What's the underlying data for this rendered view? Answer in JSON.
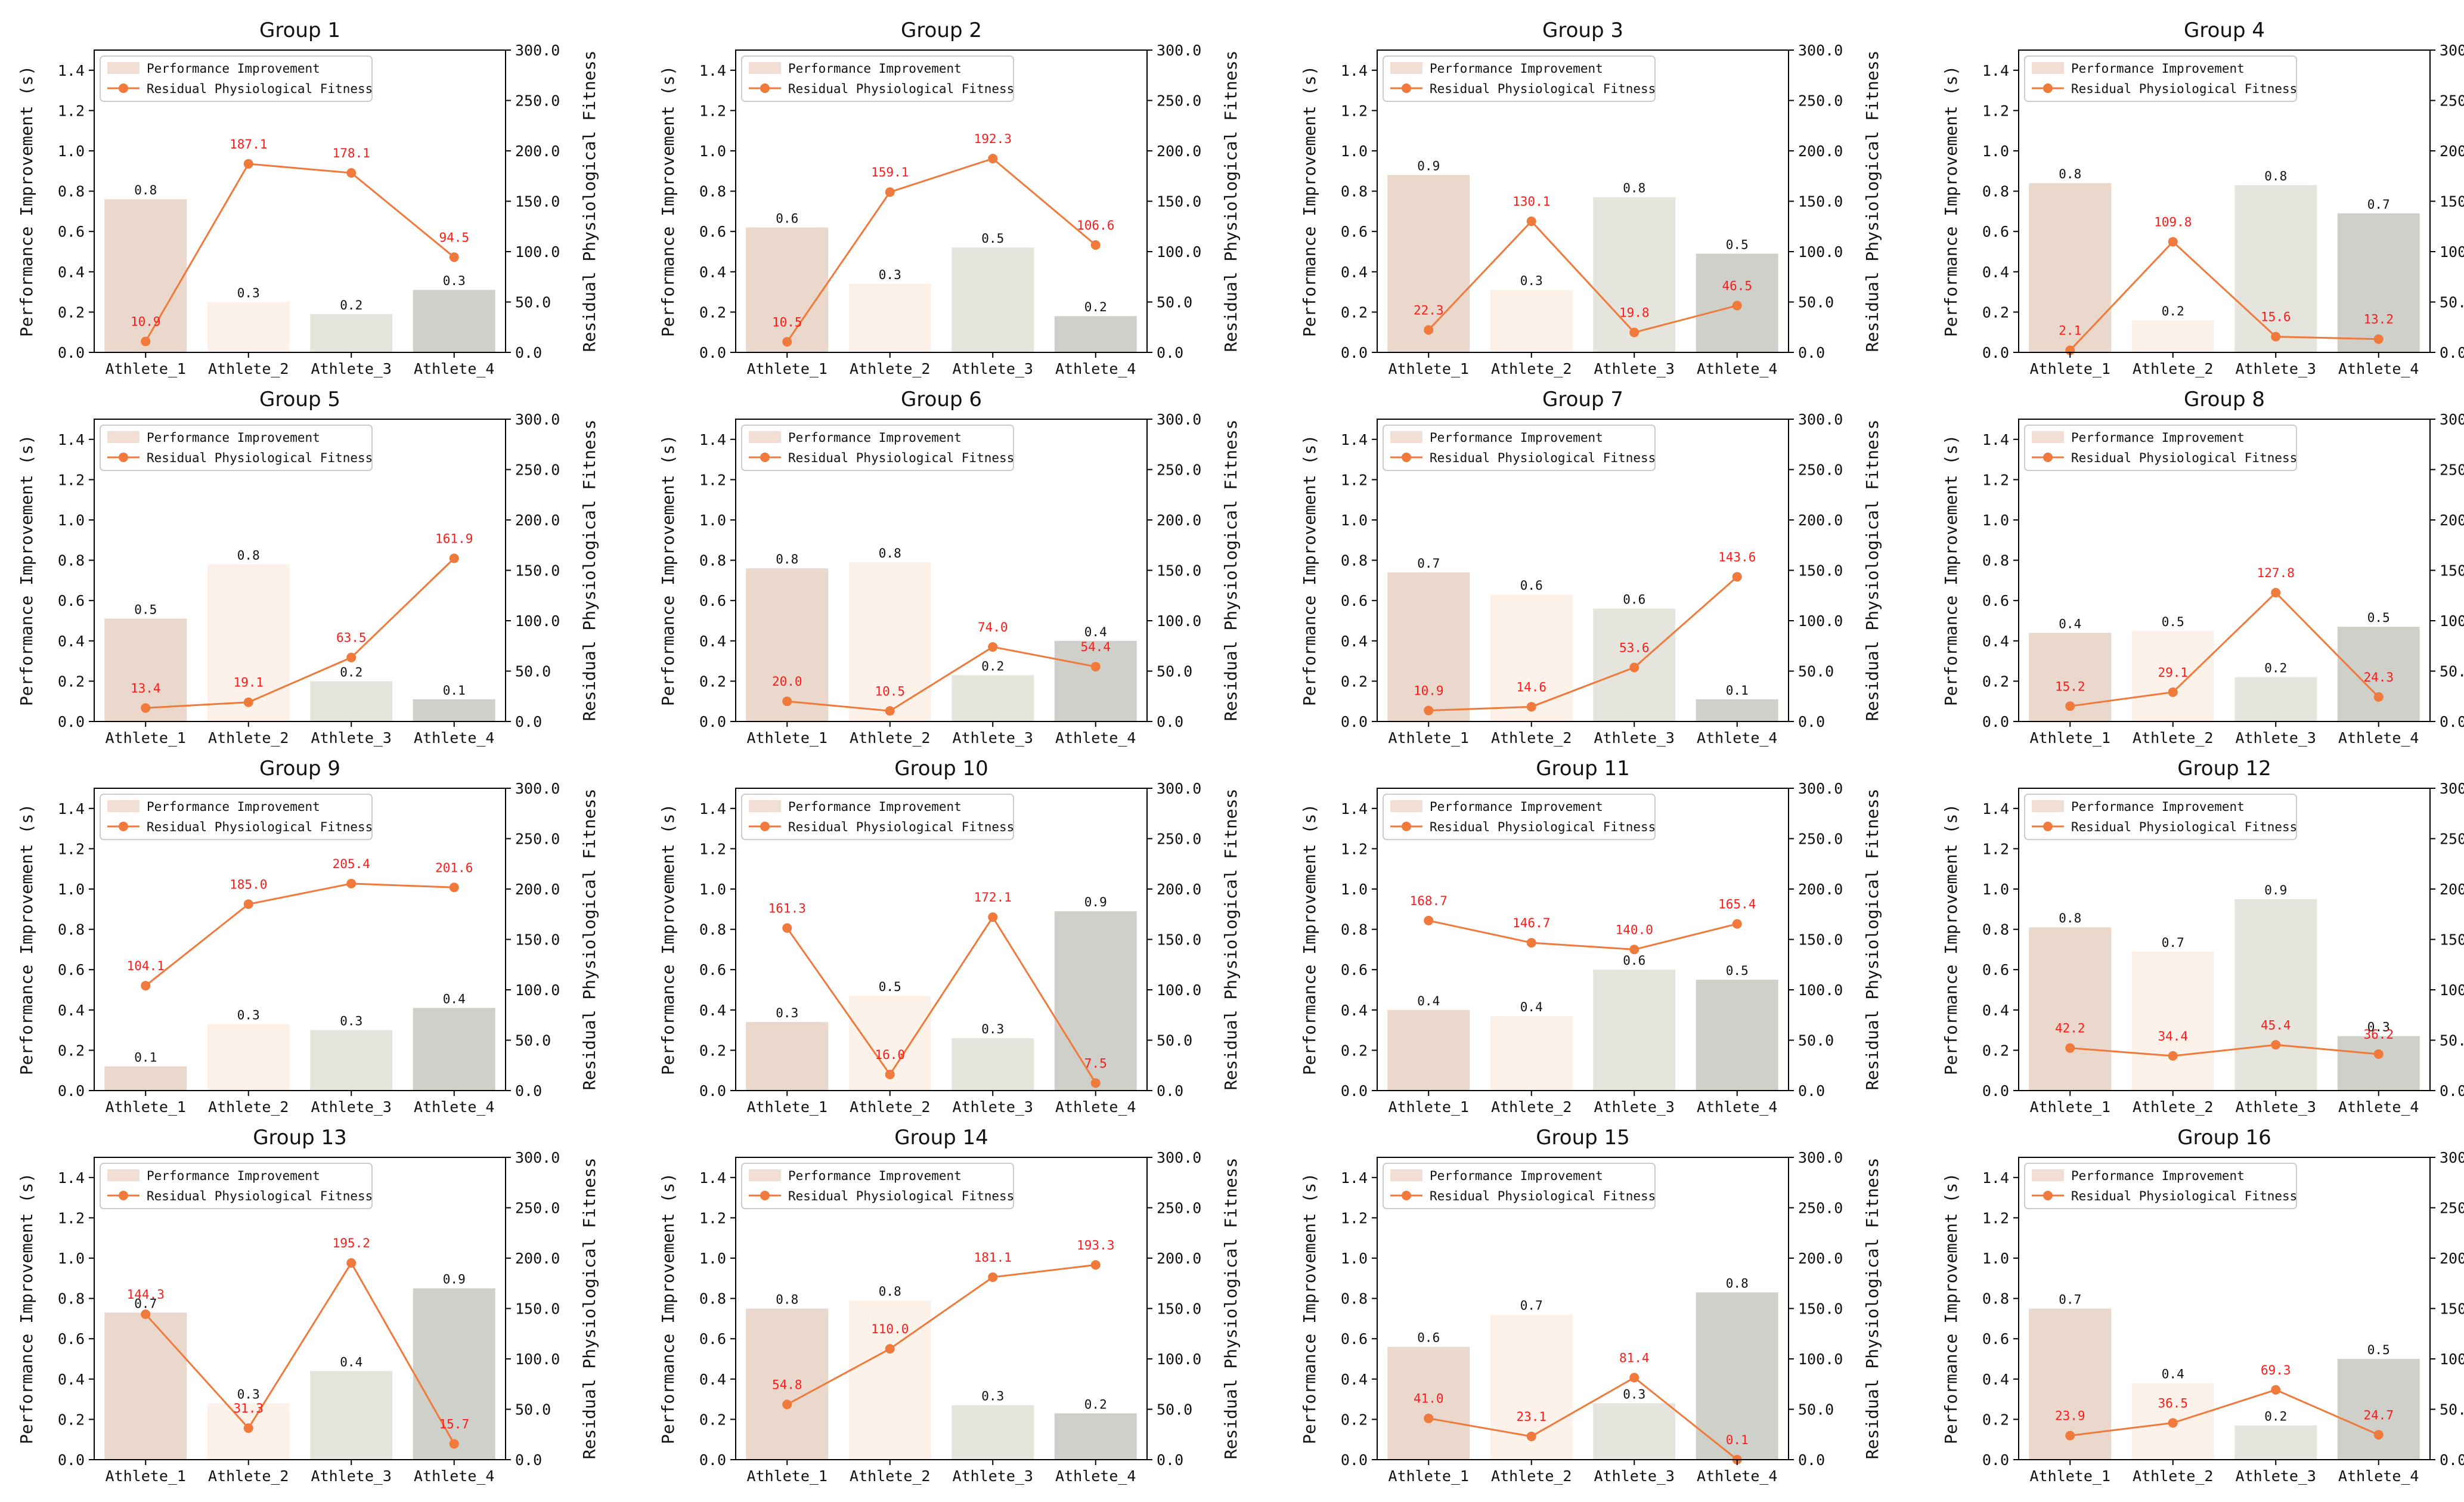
{
  "chart_data": [
    {
      "type": "bar+line",
      "title": "Group 1",
      "categories": [
        "Athlete_1",
        "Athlete_2",
        "Athlete_3",
        "Athlete_4"
      ],
      "series": [
        {
          "name": "Performance Improvement",
          "axis": "left",
          "values": [
            0.76,
            0.25,
            0.19,
            0.31
          ],
          "labels": [
            "0.8",
            "0.3",
            "0.2",
            "0.3"
          ]
        },
        {
          "name": "Residual Physiological Fitness",
          "axis": "right",
          "values": [
            10.9,
            187.1,
            178.1,
            94.5
          ],
          "labels": [
            "10.9",
            "187.1",
            "178.1",
            "94.5"
          ]
        }
      ]
    },
    {
      "type": "bar+line",
      "title": "Group 2",
      "categories": [
        "Athlete_1",
        "Athlete_2",
        "Athlete_3",
        "Athlete_4"
      ],
      "series": [
        {
          "name": "Performance Improvement",
          "axis": "left",
          "values": [
            0.62,
            0.34,
            0.52,
            0.18
          ],
          "labels": [
            "0.6",
            "0.3",
            "0.5",
            "0.2"
          ]
        },
        {
          "name": "Residual Physiological Fitness",
          "axis": "right",
          "values": [
            10.5,
            159.1,
            192.3,
            106.6
          ],
          "labels": [
            "10.5",
            "159.1",
            "192.3",
            "106.6"
          ]
        }
      ]
    },
    {
      "type": "bar+line",
      "title": "Group 3",
      "categories": [
        "Athlete_1",
        "Athlete_2",
        "Athlete_3",
        "Athlete_4"
      ],
      "series": [
        {
          "name": "Performance Improvement",
          "axis": "left",
          "values": [
            0.88,
            0.31,
            0.77,
            0.49
          ],
          "labels": [
            "0.9",
            "0.3",
            "0.8",
            "0.5"
          ]
        },
        {
          "name": "Residual Physiological Fitness",
          "axis": "right",
          "values": [
            22.3,
            130.1,
            19.8,
            46.5
          ],
          "labels": [
            "22.3",
            "130.1",
            "19.8",
            "46.5"
          ]
        }
      ]
    },
    {
      "type": "bar+line",
      "title": "Group 4",
      "categories": [
        "Athlete_1",
        "Athlete_2",
        "Athlete_3",
        "Athlete_4"
      ],
      "series": [
        {
          "name": "Performance Improvement",
          "axis": "left",
          "values": [
            0.84,
            0.16,
            0.83,
            0.69
          ],
          "labels": [
            "0.8",
            "0.2",
            "0.8",
            "0.7"
          ]
        },
        {
          "name": "Residual Physiological Fitness",
          "axis": "right",
          "values": [
            2.1,
            109.8,
            15.6,
            13.2
          ],
          "labels": [
            "2.1",
            "109.8",
            "15.6",
            "13.2"
          ]
        }
      ]
    },
    {
      "type": "bar+line",
      "title": "Group 5",
      "categories": [
        "Athlete_1",
        "Athlete_2",
        "Athlete_3",
        "Athlete_4"
      ],
      "series": [
        {
          "name": "Performance Improvement",
          "axis": "left",
          "values": [
            0.51,
            0.78,
            0.2,
            0.11
          ],
          "labels": [
            "0.5",
            "0.8",
            "0.2",
            "0.1"
          ]
        },
        {
          "name": "Residual Physiological Fitness",
          "axis": "right",
          "values": [
            13.4,
            19.1,
            63.5,
            161.9
          ],
          "labels": [
            "13.4",
            "19.1",
            "63.5",
            "161.9"
          ]
        }
      ]
    },
    {
      "type": "bar+line",
      "title": "Group 6",
      "categories": [
        "Athlete_1",
        "Athlete_2",
        "Athlete_3",
        "Athlete_4"
      ],
      "series": [
        {
          "name": "Performance Improvement",
          "axis": "left",
          "values": [
            0.76,
            0.79,
            0.23,
            0.4
          ],
          "labels": [
            "0.8",
            "0.8",
            "0.2",
            "0.4"
          ]
        },
        {
          "name": "Residual Physiological Fitness",
          "axis": "right",
          "values": [
            20.0,
            10.5,
            74.0,
            54.4
          ],
          "labels": [
            "20.0",
            "10.5",
            "74.0",
            "54.4"
          ]
        }
      ]
    },
    {
      "type": "bar+line",
      "title": "Group 7",
      "categories": [
        "Athlete_1",
        "Athlete_2",
        "Athlete_3",
        "Athlete_4"
      ],
      "series": [
        {
          "name": "Performance Improvement",
          "axis": "left",
          "values": [
            0.74,
            0.63,
            0.56,
            0.11
          ],
          "labels": [
            "0.7",
            "0.6",
            "0.6",
            "0.1"
          ]
        },
        {
          "name": "Residual Physiological Fitness",
          "axis": "right",
          "values": [
            10.9,
            14.6,
            53.6,
            143.6
          ],
          "labels": [
            "10.9",
            "14.6",
            "53.6",
            "143.6"
          ]
        }
      ]
    },
    {
      "type": "bar+line",
      "title": "Group 8",
      "categories": [
        "Athlete_1",
        "Athlete_2",
        "Athlete_3",
        "Athlete_4"
      ],
      "series": [
        {
          "name": "Performance Improvement",
          "axis": "left",
          "values": [
            0.44,
            0.45,
            0.22,
            0.47
          ],
          "labels": [
            "0.4",
            "0.5",
            "0.2",
            "0.5"
          ]
        },
        {
          "name": "Residual Physiological Fitness",
          "axis": "right",
          "values": [
            15.2,
            29.1,
            127.8,
            24.3
          ],
          "labels": [
            "15.2",
            "29.1",
            "127.8",
            "24.3"
          ]
        }
      ]
    },
    {
      "type": "bar+line",
      "title": "Group 9",
      "categories": [
        "Athlete_1",
        "Athlete_2",
        "Athlete_3",
        "Athlete_4"
      ],
      "series": [
        {
          "name": "Performance Improvement",
          "axis": "left",
          "values": [
            0.12,
            0.33,
            0.3,
            0.41
          ],
          "labels": [
            "0.1",
            "0.3",
            "0.3",
            "0.4"
          ]
        },
        {
          "name": "Residual Physiological Fitness",
          "axis": "right",
          "values": [
            104.1,
            185.0,
            205.4,
            201.6
          ],
          "labels": [
            "104.1",
            "185.0",
            "205.4",
            "201.6"
          ]
        }
      ]
    },
    {
      "type": "bar+line",
      "title": "Group 10",
      "categories": [
        "Athlete_1",
        "Athlete_2",
        "Athlete_3",
        "Athlete_4"
      ],
      "series": [
        {
          "name": "Performance Improvement",
          "axis": "left",
          "values": [
            0.34,
            0.47,
            0.26,
            0.89
          ],
          "labels": [
            "0.3",
            "0.5",
            "0.3",
            "0.9"
          ]
        },
        {
          "name": "Residual Physiological Fitness",
          "axis": "right",
          "values": [
            161.3,
            16.0,
            172.1,
            7.5
          ],
          "labels": [
            "161.3",
            "16.0",
            "172.1",
            "7.5"
          ]
        }
      ]
    },
    {
      "type": "bar+line",
      "title": "Group 11",
      "categories": [
        "Athlete_1",
        "Athlete_2",
        "Athlete_3",
        "Athlete_4"
      ],
      "series": [
        {
          "name": "Performance Improvement",
          "axis": "left",
          "values": [
            0.4,
            0.37,
            0.6,
            0.55
          ],
          "labels": [
            "0.4",
            "0.4",
            "0.6",
            "0.5"
          ]
        },
        {
          "name": "Residual Physiological Fitness",
          "axis": "right",
          "values": [
            168.7,
            146.7,
            140.0,
            165.4
          ],
          "labels": [
            "168.7",
            "146.7",
            "140.0",
            "165.4"
          ]
        }
      ]
    },
    {
      "type": "bar+line",
      "title": "Group 12",
      "categories": [
        "Athlete_1",
        "Athlete_2",
        "Athlete_3",
        "Athlete_4"
      ],
      "series": [
        {
          "name": "Performance Improvement",
          "axis": "left",
          "values": [
            0.81,
            0.69,
            0.95,
            0.27
          ],
          "labels": [
            "0.8",
            "0.7",
            "0.9",
            "0.3"
          ]
        },
        {
          "name": "Residual Physiological Fitness",
          "axis": "right",
          "values": [
            42.2,
            34.4,
            45.4,
            36.2
          ],
          "labels": [
            "42.2",
            "34.4",
            "45.4",
            "36.2"
          ]
        }
      ]
    },
    {
      "type": "bar+line",
      "title": "Group 13",
      "categories": [
        "Athlete_1",
        "Athlete_2",
        "Athlete_3",
        "Athlete_4"
      ],
      "series": [
        {
          "name": "Performance Improvement",
          "axis": "left",
          "values": [
            0.73,
            0.28,
            0.44,
            0.85
          ],
          "labels": [
            "0.7",
            "0.3",
            "0.4",
            "0.9"
          ]
        },
        {
          "name": "Residual Physiological Fitness",
          "axis": "right",
          "values": [
            144.3,
            31.3,
            195.2,
            15.7
          ],
          "labels": [
            "144.3",
            "31.3",
            "195.2",
            "15.7"
          ]
        }
      ]
    },
    {
      "type": "bar+line",
      "title": "Group 14",
      "categories": [
        "Athlete_1",
        "Athlete_2",
        "Athlete_3",
        "Athlete_4"
      ],
      "series": [
        {
          "name": "Performance Improvement",
          "axis": "left",
          "values": [
            0.75,
            0.79,
            0.27,
            0.23
          ],
          "labels": [
            "0.8",
            "0.8",
            "0.3",
            "0.2"
          ]
        },
        {
          "name": "Residual Physiological Fitness",
          "axis": "right",
          "values": [
            54.8,
            110.0,
            181.1,
            193.3
          ],
          "labels": [
            "54.8",
            "110.0",
            "181.1",
            "193.3"
          ]
        }
      ]
    },
    {
      "type": "bar+line",
      "title": "Group 15",
      "categories": [
        "Athlete_1",
        "Athlete_2",
        "Athlete_3",
        "Athlete_4"
      ],
      "series": [
        {
          "name": "Performance Improvement",
          "axis": "left",
          "values": [
            0.56,
            0.72,
            0.28,
            0.83
          ],
          "labels": [
            "0.6",
            "0.7",
            "0.3",
            "0.8"
          ]
        },
        {
          "name": "Residual Physiological Fitness",
          "axis": "right",
          "values": [
            41.0,
            23.1,
            81.4,
            0.1
          ],
          "labels": [
            "41.0",
            "23.1",
            "81.4",
            "0.1"
          ]
        }
      ]
    },
    {
      "type": "bar+line",
      "title": "Group 16",
      "categories": [
        "Athlete_1",
        "Athlete_2",
        "Athlete_3",
        "Athlete_4"
      ],
      "series": [
        {
          "name": "Performance Improvement",
          "axis": "left",
          "values": [
            0.75,
            0.38,
            0.17,
            0.5
          ],
          "labels": [
            "0.7",
            "0.4",
            "0.2",
            "0.5"
          ]
        },
        {
          "name": "Residual Physiological Fitness",
          "axis": "right",
          "values": [
            23.9,
            36.5,
            69.3,
            24.7
          ],
          "labels": [
            "23.9",
            "36.5",
            "69.3",
            "24.7"
          ]
        }
      ]
    }
  ],
  "axes": {
    "left": {
      "label": "Performance Improvement (s)",
      "ylim": [
        0,
        1.5
      ],
      "ticks": [
        "0.0",
        "0.2",
        "0.4",
        "0.6",
        "0.8",
        "1.0",
        "1.2",
        "1.4"
      ]
    },
    "right": {
      "label": "Residual Physiological Fitness",
      "ylim": [
        0,
        300
      ],
      "ticks": [
        "0.0",
        "50.0",
        "100.0",
        "150.0",
        "200.0",
        "250.0",
        "300.0"
      ]
    }
  },
  "legend": {
    "placement": "top-left",
    "items": [
      "Performance Improvement",
      "Residual Physiological Fitness"
    ]
  },
  "colors": {
    "bars": [
      "#ead8cc",
      "#fcf2ea",
      "#e5e5de",
      "#cfd0c9"
    ],
    "line": "#f07a3c",
    "line_label": "#ff1a1a",
    "legend_patch": "#f1dfd5"
  }
}
